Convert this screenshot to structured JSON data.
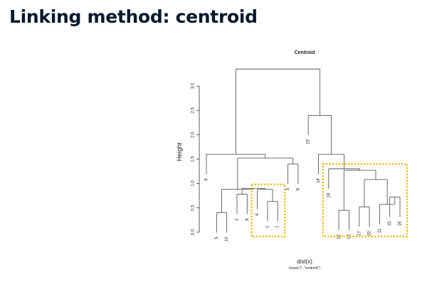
{
  "slide": {
    "title": "Linking method: centroid"
  },
  "chart_data": {
    "type": "dendrogram",
    "title": "Centroid",
    "ylabel": "Height",
    "xlabel": "dist(x)",
    "sublabel": "hclust (*, \"centroid\")",
    "ylim": [
      0,
      3.5
    ],
    "y_ticks": [
      "0.0",
      "0.5",
      "1.0",
      "1.5",
      "2.0",
      "2.5",
      "3.0"
    ],
    "leaves": [
      "9",
      "5",
      "10",
      "2",
      "8",
      "4",
      "1",
      "7",
      "3",
      "6",
      "19",
      "14",
      "18",
      "12",
      "13",
      "17",
      "20",
      "11",
      "15",
      "16"
    ],
    "merges": [
      {
        "left": [
          "leaf",
          1
        ],
        "right": [
          "leaf",
          7
        ],
        "height": 0.63
      },
      {
        "left": [
          "leaf",
          5
        ],
        "right": [
          "leaf",
          10
        ],
        "height": 0.4
      },
      {
        "left": [
          "leaf",
          12
        ],
        "right": [
          "leaf",
          13
        ],
        "height": 0.45
      },
      {
        "left": [
          "leaf",
          17
        ],
        "right": [
          "leaf",
          20
        ],
        "height": 0.52
      },
      {
        "left": [
          "leaf",
          15
        ],
        "right": [
          "leaf",
          16
        ],
        "height": 0.72
      },
      {
        "left": [
          "leaf",
          11
        ],
        "right": [
          "node",
          4
        ],
        "height": 0.57
      },
      {
        "left": [
          "leaf",
          2
        ],
        "right": [
          "leaf",
          8
        ],
        "height": 0.78
      },
      {
        "left": [
          "leaf",
          4
        ],
        "right": [
          "node",
          0
        ],
        "height": 0.88
      },
      {
        "left": [
          "node",
          6
        ],
        "right": [
          "node",
          7
        ],
        "height": 0.9
      },
      {
        "left": [
          "node",
          1
        ],
        "right": [
          "node",
          8
        ],
        "height": 0.88
      },
      {
        "left": [
          "leaf",
          3
        ],
        "right": [
          "leaf",
          6
        ],
        "height": 1.4
      },
      {
        "left": [
          "node",
          9
        ],
        "right": [
          "node",
          10
        ],
        "height": 1.52
      },
      {
        "left": [
          "leaf",
          9
        ],
        "right": [
          "node",
          11
        ],
        "height": 1.6
      },
      {
        "left": [
          "node",
          3
        ],
        "right": [
          "node",
          5
        ],
        "height": 1.08
      },
      {
        "left": [
          "node",
          2
        ],
        "right": [
          "node",
          13
        ],
        "height": 1.27
      },
      {
        "left": [
          "leaf",
          18
        ],
        "right": [
          "node",
          14
        ],
        "height": 1.3
      },
      {
        "left": [
          "leaf",
          14
        ],
        "right": [
          "node",
          15
        ],
        "height": 1.6
      },
      {
        "left": [
          "leaf",
          19
        ],
        "right": [
          "node",
          16
        ],
        "height": 2.4
      },
      {
        "left": [
          "node",
          12
        ],
        "right": [
          "node",
          17
        ],
        "height": 3.35
      }
    ],
    "highlight_groups": [
      {
        "leaves": [
          "4",
          "1",
          "7"
        ],
        "color": "#f0b400"
      },
      {
        "leaves": [
          "18",
          "12",
          "13",
          "17",
          "20",
          "11",
          "15",
          "16"
        ],
        "color": "#f0b400"
      }
    ],
    "grid": false
  }
}
